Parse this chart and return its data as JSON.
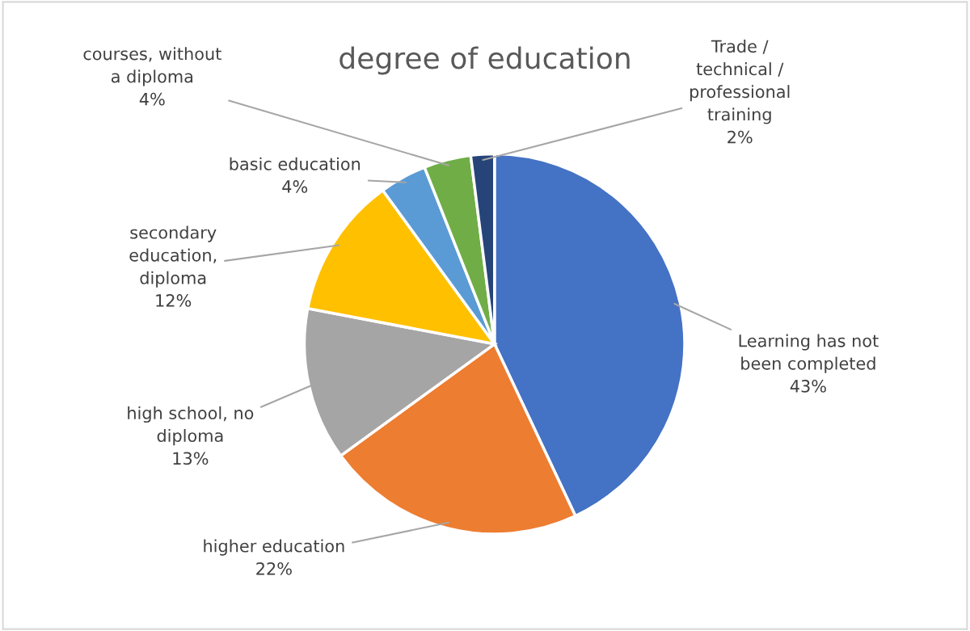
{
  "chart_data": {
    "type": "pie",
    "title": "degree of education",
    "categories": [
      "Learning has not\nbeen completed",
      "higher education",
      "high school, no\ndiploma",
      "secondary\neducation,\ndiploma",
      "basic education",
      "courses, without\na diploma",
      "Trade /\ntechnical /\nprofessional\ntraining"
    ],
    "values": [
      43,
      22,
      13,
      12,
      4,
      4,
      2
    ],
    "colors": [
      "#4472c4",
      "#ed7d31",
      "#a5a5a5",
      "#ffc000",
      "#5b9bd5",
      "#70ad47",
      "#264478"
    ],
    "value_labels": [
      "43%",
      "22%",
      "13%",
      "12%",
      "4%",
      "4%",
      "2%"
    ],
    "legend": false
  }
}
